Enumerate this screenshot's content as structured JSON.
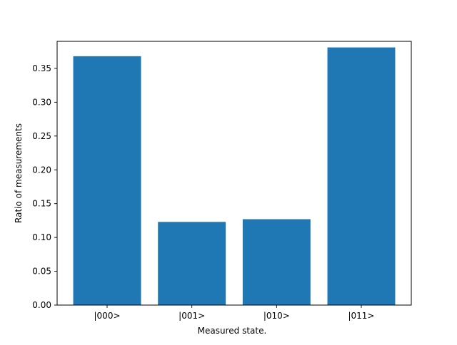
{
  "chart_data": {
    "type": "bar",
    "title": "",
    "xlabel": "Measured state.",
    "ylabel": "Ratio of measurements",
    "categories": [
      "|000>",
      "|001>",
      "|010>",
      "|011>"
    ],
    "values": [
      0.368,
      0.123,
      0.127,
      0.381
    ],
    "ylim": [
      0,
      0.39
    ],
    "yticks": [
      0.0,
      0.05,
      0.1,
      0.15,
      0.2,
      0.25,
      0.3,
      0.35
    ],
    "ytick_labels": [
      "0.00",
      "0.05",
      "0.10",
      "0.15",
      "0.20",
      "0.25",
      "0.30",
      "0.35"
    ],
    "grid": false,
    "legend": "none",
    "colors": {
      "bar": "#1f77b4",
      "axis": "#000000",
      "background": "#ffffff"
    }
  }
}
